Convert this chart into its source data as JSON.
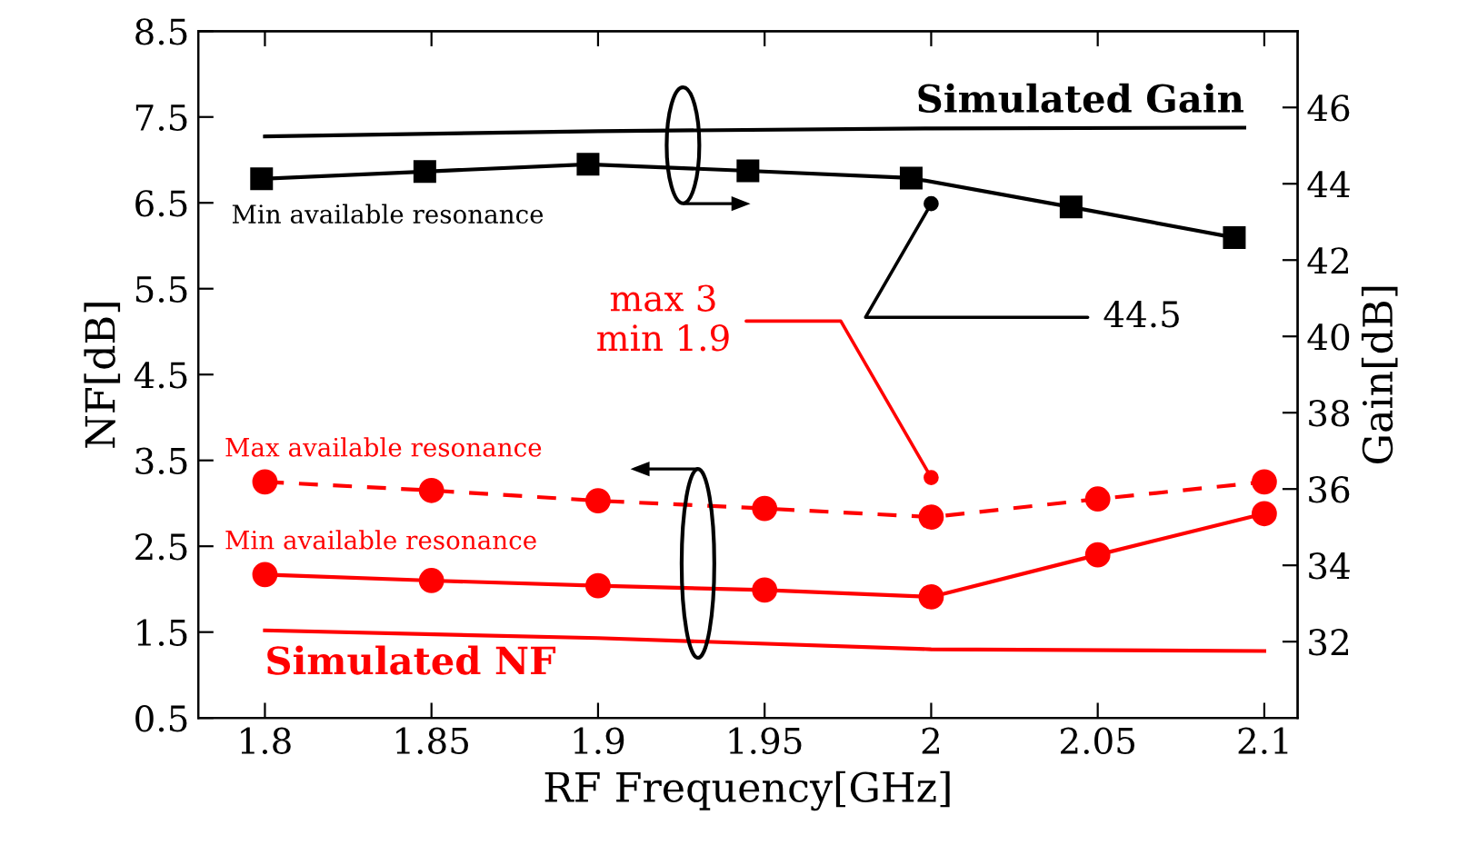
{
  "chart_data": {
    "type": "line",
    "xlabel": "RF Frequency[GHz]",
    "ylabel": "NF[dB]",
    "y2label": "Gain[dB]",
    "xlim": [
      1.78,
      2.11
    ],
    "xticks": [
      1.8,
      1.85,
      1.9,
      1.95,
      2,
      2.05,
      2.1
    ],
    "ylim": [
      0.5,
      8.5
    ],
    "yticks": [
      0.5,
      1.5,
      2.5,
      3.5,
      4.5,
      5.5,
      6.5,
      7.5,
      8.5
    ],
    "y2lim": [
      30,
      48
    ],
    "y2ticks": [
      32,
      34,
      36,
      38,
      40,
      42,
      44,
      46
    ],
    "grid": false,
    "series": [
      {
        "name": "Simulated Gain",
        "color": "#000000",
        "axis": "y2",
        "marker": "none",
        "line_style": "solid",
        "x": [
          1.8,
          1.9,
          2.0,
          2.094
        ],
        "values": [
          45.24,
          45.38,
          45.45,
          45.47
        ]
      },
      {
        "name": "Min available resonance",
        "color": "#000000",
        "axis": "y2",
        "marker": "square",
        "line_style": "solid",
        "x": [
          1.799,
          1.848,
          1.897,
          1.945,
          1.994,
          2.042,
          2.091
        ],
        "values": [
          44.13,
          44.32,
          44.51,
          44.34,
          44.15,
          43.39,
          42.59
        ]
      },
      {
        "name": "Max available resonance",
        "color": "#ff0000",
        "axis": "y",
        "marker": "circle",
        "line_style": "dashed",
        "x": [
          1.8,
          1.85,
          1.9,
          1.95,
          2.0,
          2.05,
          2.1
        ],
        "values": [
          3.25,
          3.15,
          3.03,
          2.94,
          2.84,
          3.05,
          3.25
        ]
      },
      {
        "name": "Min available resonance",
        "color": "#ff0000",
        "axis": "y",
        "marker": "circle",
        "line_style": "solid",
        "x": [
          1.8,
          1.85,
          1.9,
          1.95,
          2.0,
          2.05,
          2.1
        ],
        "values": [
          2.17,
          2.1,
          2.04,
          1.99,
          1.91,
          2.4,
          2.88
        ]
      },
      {
        "name": "Simulated NF",
        "color": "#ff0000",
        "axis": "y",
        "marker": "none",
        "line_style": "solid",
        "x": [
          1.8,
          1.9,
          2.0,
          2.1
        ],
        "values": [
          1.52,
          1.43,
          1.3,
          1.28
        ]
      }
    ],
    "annotations": [
      {
        "text": "44.5",
        "x": 2.0,
        "y": 6.49
      },
      {
        "text": "max 3\nmin 1.9",
        "x": 2.0,
        "y": 3.3
      }
    ]
  }
}
